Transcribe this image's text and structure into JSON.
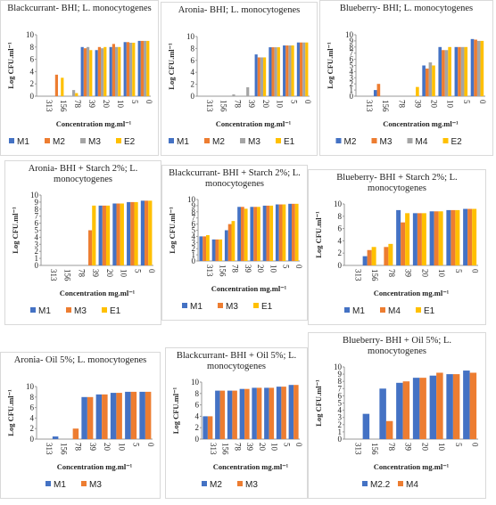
{
  "chart_data": [
    {
      "type": "bar",
      "title": "Blackcurrant- BHI; L. monocytogenes",
      "x_label": "Concentration mg.ml⁻¹",
      "y_label": "Log CFU.ml⁻¹",
      "categories": [
        "313",
        "156",
        "78",
        "39",
        "20",
        "10",
        "5",
        "0"
      ],
      "ylim": [
        0,
        10
      ],
      "yticks": [
        0,
        2,
        4,
        6,
        8,
        10
      ],
      "series": [
        {
          "name": "M1",
          "color": "#4472c4",
          "values": [
            null,
            null,
            null,
            8,
            7.5,
            8,
            8.8,
            9
          ]
        },
        {
          "name": "M2",
          "color": "#ed7d31",
          "values": [
            null,
            3.5,
            null,
            7.8,
            8,
            8.5,
            8.8,
            9
          ]
        },
        {
          "name": "M3",
          "color": "#a5a5a5",
          "values": [
            null,
            null,
            1,
            8,
            7.8,
            8,
            8.7,
            9
          ]
        },
        {
          "name": "E2",
          "color": "#ffc000",
          "values": [
            null,
            3,
            0.5,
            7.5,
            8,
            8,
            8.7,
            9
          ]
        }
      ]
    },
    {
      "type": "bar",
      "title": "Aronia- BHI; L. monocytogenes",
      "x_label": "Concentration mg.ml⁻¹",
      "y_label": "Log CFU.ml⁻¹",
      "categories": [
        "313",
        "156",
        "78",
        "39",
        "20",
        "10",
        "5",
        "0"
      ],
      "ylim": [
        0,
        10
      ],
      "yticks": [
        0,
        2,
        4,
        6,
        8,
        10
      ],
      "series": [
        {
          "name": "M1",
          "color": "#4472c4",
          "values": [
            null,
            null,
            null,
            null,
            7,
            8.2,
            8.5,
            9
          ]
        },
        {
          "name": "M2",
          "color": "#ed7d31",
          "values": [
            null,
            null,
            null,
            null,
            6.5,
            8.2,
            8.5,
            9
          ]
        },
        {
          "name": "M3",
          "color": "#a5a5a5",
          "values": [
            null,
            null,
            0.3,
            1.5,
            6.5,
            8.2,
            8.5,
            9
          ]
        },
        {
          "name": "E1",
          "color": "#ffc000",
          "values": [
            null,
            null,
            null,
            null,
            6.5,
            8.2,
            8.5,
            9
          ]
        }
      ]
    },
    {
      "type": "bar",
      "title": "Blueberry- BHI; L. monocytogenes",
      "x_label": "Concentration mg.ml⁻¹",
      "y_label": "Log CFU.ml⁻¹",
      "categories": [
        "313",
        "156",
        "78",
        "39",
        "20",
        "10",
        "5",
        "0"
      ],
      "ylim": [
        0,
        10
      ],
      "yticks": [
        0,
        1,
        2,
        3,
        4,
        5,
        6,
        7,
        8,
        9,
        10
      ],
      "series": [
        {
          "name": "M2",
          "color": "#4472c4",
          "values": [
            null,
            1,
            null,
            null,
            5,
            8,
            8,
            9.3
          ]
        },
        {
          "name": "M3",
          "color": "#ed7d31",
          "values": [
            null,
            2,
            null,
            null,
            4.5,
            7.5,
            8,
            9.2
          ]
        },
        {
          "name": "M4",
          "color": "#a5a5a5",
          "values": [
            null,
            null,
            null,
            null,
            5.5,
            7.5,
            8,
            9
          ]
        },
        {
          "name": "E2",
          "color": "#ffc000",
          "values": [
            null,
            null,
            null,
            1.5,
            5,
            8,
            8,
            9
          ]
        }
      ]
    },
    {
      "type": "bar",
      "title": "Aronia- BHI + Starch 2%; L. monocytogenes",
      "x_label": "Concentration mg.ml⁻¹",
      "y_label": "Log CFU.ml⁻¹",
      "categories": [
        "313",
        "156",
        "78",
        "39",
        "20",
        "10",
        "5",
        "0"
      ],
      "ylim": [
        0,
        10
      ],
      "yticks": [
        0,
        1,
        2,
        3,
        4,
        5,
        6,
        7,
        8,
        9,
        10
      ],
      "series": [
        {
          "name": "M1",
          "color": "#4472c4",
          "values": [
            null,
            null,
            null,
            null,
            8.5,
            8.8,
            9,
            9.2
          ]
        },
        {
          "name": "M3",
          "color": "#ed7d31",
          "values": [
            null,
            null,
            null,
            5,
            8.5,
            8.8,
            9,
            9.2
          ]
        },
        {
          "name": "E1",
          "color": "#ffc000",
          "values": [
            null,
            null,
            null,
            8.5,
            8.5,
            8.8,
            9,
            9.2
          ]
        }
      ]
    },
    {
      "type": "bar",
      "title": "Blackcurrant- BHI + Starch 2%; L. monocytogenes",
      "x_label": "Concentration mg.ml⁻¹",
      "y_label": "Log CFU.ml⁻¹",
      "categories": [
        "313",
        "156",
        "78",
        "39",
        "20",
        "10",
        "5",
        "0"
      ],
      "ylim": [
        0,
        10
      ],
      "yticks": [
        0,
        1,
        2,
        3,
        4,
        5,
        6,
        7,
        8,
        9,
        10
      ],
      "series": [
        {
          "name": "M1",
          "color": "#4472c4",
          "values": [
            4,
            3.5,
            5,
            8.8,
            8.8,
            9,
            9.2,
            9.3
          ]
        },
        {
          "name": "M3",
          "color": "#ed7d31",
          "values": [
            4,
            3.5,
            6,
            8.8,
            8.8,
            9,
            9.2,
            9.3
          ]
        },
        {
          "name": "E1",
          "color": "#ffc000",
          "values": [
            4.2,
            3.5,
            6.5,
            8.5,
            8.8,
            9,
            9.2,
            9.3
          ]
        }
      ]
    },
    {
      "type": "bar",
      "title": "Blueberry- BHI + Starch 2%; L. monocytogenes",
      "x_label": "Concentration mg.ml⁻¹",
      "y_label": "Log CFU.ml⁻¹",
      "categories": [
        "313",
        "156",
        "78",
        "39",
        "20",
        "10",
        "5",
        "0"
      ],
      "ylim": [
        0,
        10
      ],
      "yticks": [
        0,
        2,
        4,
        6,
        8,
        10
      ],
      "series": [
        {
          "name": "M1",
          "color": "#4472c4",
          "values": [
            null,
            1.5,
            null,
            9,
            8.5,
            8.8,
            9,
            9.2
          ]
        },
        {
          "name": "M4",
          "color": "#ed7d31",
          "values": [
            null,
            2.5,
            3,
            7,
            8.5,
            8.8,
            9,
            9.2
          ]
        },
        {
          "name": "E1",
          "color": "#ffc000",
          "values": [
            null,
            3,
            3.5,
            8.5,
            8.5,
            8.8,
            9,
            9.2
          ]
        }
      ]
    },
    {
      "type": "bar",
      "title": "Aronia- Oil 5%; L. monocytogenes",
      "x_label": "Concentration mg.ml⁻¹",
      "y_label": "Log CFU.ml⁻¹",
      "categories": [
        "313",
        "156",
        "78",
        "39",
        "20",
        "10",
        "5",
        "0"
      ],
      "ylim": [
        0,
        10
      ],
      "yticks": [
        0,
        2,
        4,
        6,
        8,
        10
      ],
      "series": [
        {
          "name": "M1",
          "color": "#4472c4",
          "values": [
            null,
            0.5,
            null,
            8,
            8.5,
            8.8,
            9,
            9
          ]
        },
        {
          "name": "M3",
          "color": "#ed7d31",
          "values": [
            null,
            null,
            2,
            8,
            8.5,
            8.8,
            9,
            9
          ]
        }
      ]
    },
    {
      "type": "bar",
      "title": "Blackcurrant- BHI + Oil 5%; L. monocytogenes",
      "x_label": "Concentration mg.ml⁻¹",
      "y_label": "Log CFU.ml⁻¹",
      "categories": [
        "313",
        "156",
        "78",
        "39",
        "20",
        "10",
        "5",
        "0"
      ],
      "ylim": [
        0,
        10
      ],
      "yticks": [
        0,
        2,
        4,
        6,
        8,
        10
      ],
      "series": [
        {
          "name": "M2",
          "color": "#4472c4",
          "values": [
            4,
            8.5,
            8.5,
            8.8,
            9,
            9,
            9.2,
            9.5
          ]
        },
        {
          "name": "M3",
          "color": "#ed7d31",
          "values": [
            4,
            8.5,
            8.5,
            8.8,
            9,
            9,
            9.2,
            9.5
          ]
        }
      ]
    },
    {
      "type": "bar",
      "title": "Blueberry- BHI + Oil 5%; L. monocytogenes",
      "x_label": "Concentration mg.ml⁻¹",
      "y_label": "Log CFU.ml⁻¹",
      "categories": [
        "313",
        "156",
        "78",
        "39",
        "20",
        "10",
        "5",
        "0"
      ],
      "ylim": [
        0,
        10
      ],
      "yticks": [
        0,
        1,
        2,
        3,
        4,
        5,
        6,
        7,
        8,
        9,
        10
      ],
      "series": [
        {
          "name": "M2.2",
          "color": "#4472c4",
          "values": [
            null,
            3.5,
            7,
            7.8,
            8.5,
            8.8,
            9,
            9.5
          ]
        },
        {
          "name": "M4",
          "color": "#ed7d31",
          "values": [
            null,
            null,
            2.5,
            8,
            8.5,
            9.2,
            9,
            9.2
          ]
        }
      ]
    }
  ]
}
